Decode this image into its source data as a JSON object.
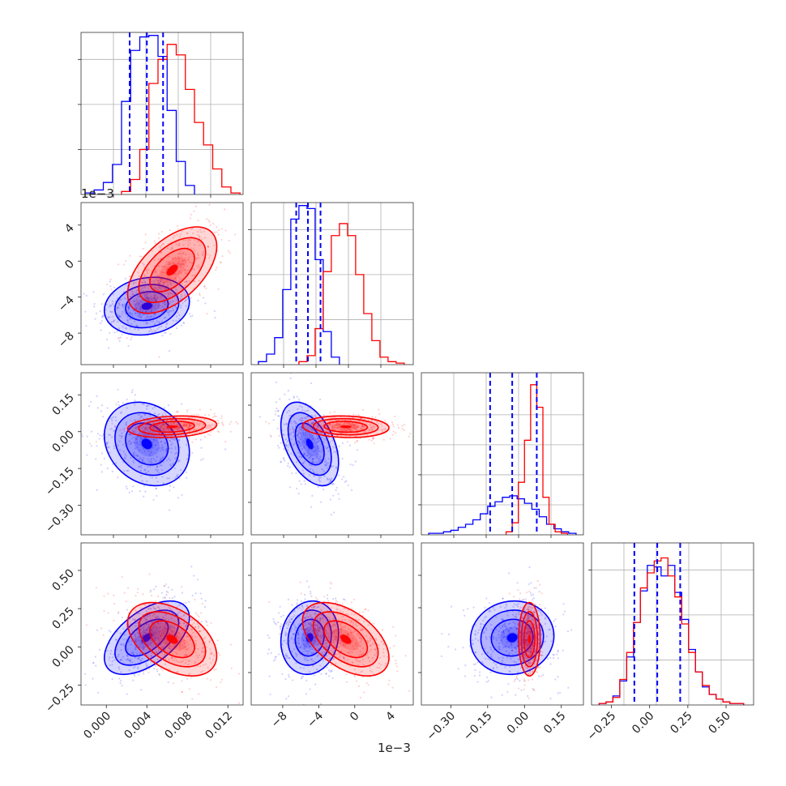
{
  "figure": {
    "type": "corner-plot",
    "offset_labels": [
      "1e−3",
      "1e−3"
    ],
    "series": [
      {
        "name": "",
        "color": "#0000ff"
      },
      {
        "name": "",
        "color": "#ff0000"
      }
    ]
  },
  "chart_data": [
    {
      "type": "histogram",
      "panel": "p0_0",
      "xlim": [
        -0.0025,
        0.0135
      ],
      "ylim": [
        0,
        1.08
      ],
      "grid": true,
      "ytick_values": [
        0.3,
        0.6,
        0.9
      ],
      "xtick_labels": [],
      "ytick_labels": [],
      "series": [
        {
          "name": "",
          "color": "#0000ff",
          "edges": [
            -0.0021,
            -0.0012,
            -0.0003,
            0.0006,
            0.0015,
            0.0024,
            0.0033,
            0.0042,
            0.0051,
            0.006,
            0.0069,
            0.0078,
            0.0087
          ],
          "counts": [
            0.01,
            0.03,
            0.08,
            0.2,
            0.62,
            0.96,
            1.05,
            1.06,
            0.92,
            0.56,
            0.22,
            0.06
          ]
        },
        {
          "name": "",
          "color": "#ff0000",
          "edges": [
            0.0015,
            0.0024,
            0.0033,
            0.0042,
            0.0051,
            0.006,
            0.0069,
            0.0078,
            0.0087,
            0.0096,
            0.0105,
            0.0114,
            0.0123,
            0.0132
          ],
          "counts": [
            0.02,
            0.1,
            0.3,
            0.74,
            0.9,
            1.0,
            0.93,
            0.7,
            0.48,
            0.33,
            0.17,
            0.05,
            0.01
          ]
        }
      ],
      "quantile_lines": [
        0.0023,
        0.004,
        0.0056
      ]
    },
    {
      "type": "scatter-contour",
      "panel": "p1_0",
      "xlim": [
        -0.0025,
        0.0135
      ],
      "ylim": [
        -0.0115,
        0.0065
      ],
      "yticks": [
        4,
        0,
        -4,
        -8
      ],
      "ytick_labels": [
        "4",
        "0",
        "−4",
        "−8"
      ],
      "ytick_values": [
        0.004,
        0,
        -0.004,
        -0.008
      ],
      "series": [
        {
          "name": "",
          "color": "#0000ff",
          "mean": [
            0.004,
            -0.005
          ],
          "std": [
            0.0021,
            0.0016
          ],
          "rho": 0.15
        },
        {
          "name": "",
          "color": "#ff0000",
          "mean": [
            0.0065,
            -0.001
          ],
          "std": [
            0.0022,
            0.0024
          ],
          "rho": 0.55
        }
      ]
    },
    {
      "type": "histogram",
      "panel": "p1_1",
      "xlim": [
        -0.0115,
        0.0065
      ],
      "ylim": [
        0,
        1.08
      ],
      "grid": true,
      "ytick_values": [
        0.3,
        0.6,
        0.9
      ],
      "xtick_labels": [],
      "ytick_labels": [],
      "series": [
        {
          "name": "",
          "color": "#0000ff",
          "edges": [
            -0.0107,
            -0.0098,
            -0.0089,
            -0.008,
            -0.0071,
            -0.0062,
            -0.0053,
            -0.0044,
            -0.0035,
            -0.0026,
            -0.0017
          ],
          "counts": [
            0.02,
            0.07,
            0.18,
            0.5,
            0.97,
            1.06,
            1.04,
            0.7,
            0.22,
            0.05
          ]
        },
        {
          "name": "",
          "color": "#ff0000",
          "edges": [
            -0.0062,
            -0.0053,
            -0.0044,
            -0.0035,
            -0.0026,
            -0.0017,
            -0.0008,
            0.0001,
            0.001,
            0.0019,
            0.0028,
            0.0037,
            0.0046,
            0.0055
          ],
          "counts": [
            0.02,
            0.06,
            0.24,
            0.62,
            0.86,
            0.94,
            0.86,
            0.6,
            0.34,
            0.16,
            0.05,
            0.02,
            0.01
          ]
        }
      ],
      "quantile_lines": [
        -0.0065,
        -0.0052,
        -0.0038
      ]
    },
    {
      "type": "scatter-contour",
      "panel": "p2_0",
      "xlim": [
        -0.0025,
        0.0135
      ],
      "ylim": [
        -0.42,
        0.24
      ],
      "yticks": [
        0.15,
        0,
        -0.15,
        -0.3
      ],
      "ytick_labels": [
        "0.15",
        "0.00",
        "−0.15",
        "−0.30"
      ],
      "ytick_values": [
        0.15,
        0,
        -0.15,
        -0.3
      ],
      "series": [
        {
          "name": "",
          "color": "#0000ff",
          "mean": [
            0.004,
            -0.05
          ],
          "std": [
            0.0021,
            0.085
          ],
          "rho": -0.2
        },
        {
          "name": "",
          "color": "#ff0000",
          "mean": [
            0.0065,
            0.02
          ],
          "std": [
            0.0022,
            0.022
          ],
          "rho": 0.2
        }
      ]
    },
    {
      "type": "scatter-contour",
      "panel": "p2_1",
      "xlim": [
        -0.0115,
        0.0065
      ],
      "ylim": [
        -0.42,
        0.24
      ],
      "series": [
        {
          "name": "",
          "color": "#0000ff",
          "mean": [
            -0.005,
            -0.05
          ],
          "std": [
            0.0016,
            0.085
          ],
          "rho": -0.45
        },
        {
          "name": "",
          "color": "#ff0000",
          "mean": [
            -0.001,
            0.02
          ],
          "std": [
            0.0024,
            0.022
          ],
          "rho": -0.1
        }
      ]
    },
    {
      "type": "histogram",
      "panel": "p2_2",
      "xlim": [
        -0.42,
        0.24
      ],
      "ylim": [
        0,
        1.08
      ],
      "grid": true,
      "ytick_values": [
        0.2,
        0.4,
        0.6,
        0.8
      ],
      "xtick_labels": [],
      "ytick_labels": [],
      "series": [
        {
          "name": "",
          "color": "#0000ff",
          "edges": [
            -0.39,
            -0.36,
            -0.33,
            -0.3,
            -0.27,
            -0.24,
            -0.21,
            -0.18,
            -0.15,
            -0.12,
            -0.09,
            -0.06,
            -0.03,
            0.0,
            0.03,
            0.06,
            0.09,
            0.12,
            0.15,
            0.18,
            0.21
          ],
          "counts": [
            0.01,
            0.01,
            0.02,
            0.03,
            0.05,
            0.07,
            0.1,
            0.14,
            0.19,
            0.22,
            0.25,
            0.26,
            0.24,
            0.21,
            0.17,
            0.12,
            0.07,
            0.04,
            0.02,
            0.01
          ]
        },
        {
          "name": "",
          "color": "#ff0000",
          "edges": [
            -0.075,
            -0.05,
            -0.025,
            0.0,
            0.025,
            0.05,
            0.075,
            0.1,
            0.125,
            0.15,
            0.175
          ],
          "counts": [
            0.02,
            0.08,
            0.35,
            0.63,
            1.0,
            0.85,
            0.25,
            0.07,
            0.02,
            0.01
          ]
        }
      ],
      "quantile_lines": [
        -0.14,
        -0.05,
        0.05
      ]
    },
    {
      "type": "scatter-contour",
      "panel": "p3_0",
      "xlim": [
        -0.0025,
        0.0135
      ],
      "ylim": [
        -0.38,
        0.68
      ],
      "yticks": [
        0.5,
        0.25,
        0,
        -0.25
      ],
      "ytick_labels": [
        "0.50",
        "0.25",
        "0.00",
        "−0.25"
      ],
      "ytick_values": [
        0.5,
        0.25,
        0,
        -0.25
      ],
      "xticks": [
        0,
        0.004,
        0.008,
        0.012
      ],
      "xtick_labels": [
        "0.000",
        "0.004",
        "0.008",
        "0.012"
      ],
      "xtick_values": [
        0,
        0.004,
        0.008,
        0.012
      ],
      "series": [
        {
          "name": "",
          "color": "#0000ff",
          "mean": [
            0.004,
            0.06
          ],
          "std": [
            0.0021,
            0.12
          ],
          "rho": 0.55
        },
        {
          "name": "",
          "color": "#ff0000",
          "mean": [
            0.0065,
            0.05
          ],
          "std": [
            0.0022,
            0.12
          ],
          "rho": -0.45
        }
      ]
    },
    {
      "type": "scatter-contour",
      "panel": "p3_1",
      "xlim": [
        -0.0115,
        0.0065
      ],
      "ylim": [
        -0.38,
        0.68
      ],
      "xticks": [
        -8,
        -4,
        0,
        4
      ],
      "xtick_labels": [
        "−8",
        "−4",
        "0",
        "4"
      ],
      "xtick_values": [
        -0.008,
        -0.004,
        0,
        0.004
      ],
      "series": [
        {
          "name": "",
          "color": "#0000ff",
          "mean": [
            -0.005,
            0.06
          ],
          "std": [
            0.0016,
            0.12
          ],
          "rho": 0.1
        },
        {
          "name": "",
          "color": "#ff0000",
          "mean": [
            -0.001,
            0.05
          ],
          "std": [
            0.0024,
            0.12
          ],
          "rho": -0.5
        }
      ]
    },
    {
      "type": "scatter-contour",
      "panel": "p3_2",
      "xlim": [
        -0.42,
        0.24
      ],
      "ylim": [
        -0.38,
        0.68
      ],
      "xticks": [
        -0.3,
        -0.15,
        0,
        0.15
      ],
      "xtick_labels": [
        "−0.30",
        "−0.15",
        "0.00",
        "0.15"
      ],
      "xtick_values": [
        -0.3,
        -0.15,
        0,
        0.15
      ],
      "series": [
        {
          "name": "",
          "color": "#0000ff",
          "mean": [
            -0.05,
            0.06
          ],
          "std": [
            0.085,
            0.12
          ],
          "rho": 0.05
        },
        {
          "name": "",
          "color": "#ff0000",
          "mean": [
            0.02,
            0.05
          ],
          "std": [
            0.022,
            0.12
          ],
          "rho": 0.0
        }
      ]
    },
    {
      "type": "histogram",
      "panel": "p3_3",
      "xlim": [
        -0.38,
        0.68
      ],
      "ylim": [
        0,
        1.08
      ],
      "grid": true,
      "ytick_values": [
        0.3,
        0.6,
        0.9
      ],
      "xticks": [
        -0.25,
        0,
        0.25,
        0.5
      ],
      "xtick_labels": [
        "−0.25",
        "0.00",
        "0.25",
        "0.50"
      ],
      "xtick_values": [
        -0.25,
        0,
        0.25,
        0.5
      ],
      "series": [
        {
          "name": "",
          "color": "#0000ff",
          "edges": [
            -0.33,
            -0.285,
            -0.24,
            -0.195,
            -0.15,
            -0.105,
            -0.06,
            -0.015,
            0.03,
            0.075,
            0.12,
            0.165,
            0.21,
            0.255,
            0.3,
            0.345,
            0.39,
            0.435,
            0.48,
            0.525,
            0.57,
            0.615
          ],
          "counts": [
            0.01,
            0.02,
            0.06,
            0.16,
            0.32,
            0.55,
            0.76,
            0.93,
            0.92,
            0.86,
            0.93,
            0.75,
            0.57,
            0.37,
            0.22,
            0.12,
            0.07,
            0.04,
            0.02,
            0.01,
            0.01
          ]
        },
        {
          "name": "",
          "color": "#ff0000",
          "edges": [
            -0.33,
            -0.285,
            -0.24,
            -0.195,
            -0.15,
            -0.105,
            -0.06,
            -0.015,
            0.03,
            0.075,
            0.12,
            0.165,
            0.21,
            0.255,
            0.3,
            0.345,
            0.39,
            0.435,
            0.48,
            0.525,
            0.57,
            0.615
          ],
          "counts": [
            0.01,
            0.02,
            0.05,
            0.17,
            0.35,
            0.55,
            0.78,
            0.88,
            0.96,
            0.98,
            0.86,
            0.72,
            0.54,
            0.35,
            0.22,
            0.13,
            0.07,
            0.04,
            0.02,
            0.01,
            0.01
          ]
        }
      ],
      "quantile_lines": [
        -0.1,
        0.05,
        0.2
      ]
    }
  ]
}
